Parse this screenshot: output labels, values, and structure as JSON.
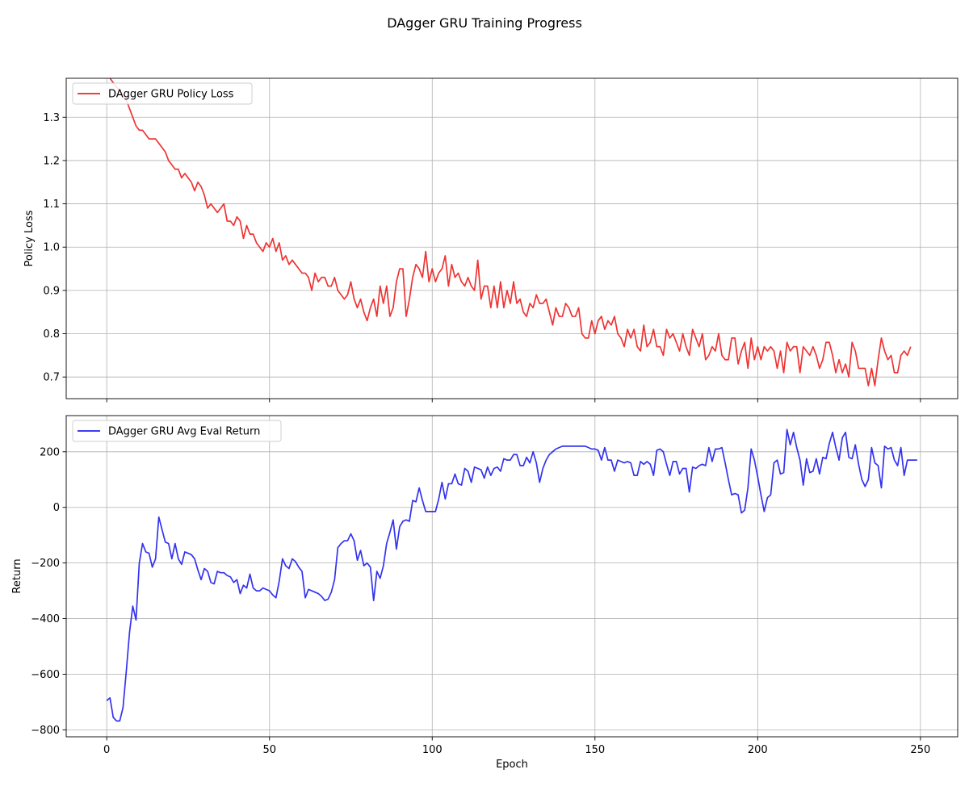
{
  "figure_title": "DAgger GRU Training Progress",
  "chart_data": [
    {
      "type": "line",
      "title": "",
      "xlabel": "",
      "ylabel": "Policy Loss",
      "xlim": [
        -12.45,
        261.45
      ],
      "ylim": [
        0.65,
        1.39
      ],
      "xticks": [
        0,
        50,
        100,
        150,
        200,
        250
      ],
      "xtick_labels": [
        "",
        "",
        "",
        "",
        "",
        ""
      ],
      "yticks": [
        0.7,
        0.8,
        0.9,
        1.0,
        1.1,
        1.2,
        1.3
      ],
      "ytick_labels": [
        "0.7",
        "0.8",
        "0.9",
        "1.0",
        "1.1",
        "1.2",
        "1.3"
      ],
      "grid": true,
      "legend_position": "upper-left",
      "series": [
        {
          "name": "DAgger GRU Policy Loss",
          "color": "#ee2222",
          "x_start": 0,
          "x_step": 1,
          "values": [
            1.4,
            1.39,
            1.38,
            1.37,
            1.36,
            1.35,
            1.34,
            1.32,
            1.3,
            1.28,
            1.27,
            1.27,
            1.26,
            1.25,
            1.25,
            1.25,
            1.24,
            1.23,
            1.22,
            1.2,
            1.19,
            1.18,
            1.18,
            1.16,
            1.17,
            1.16,
            1.15,
            1.13,
            1.15,
            1.14,
            1.12,
            1.09,
            1.1,
            1.09,
            1.08,
            1.09,
            1.1,
            1.06,
            1.06,
            1.05,
            1.07,
            1.06,
            1.02,
            1.05,
            1.03,
            1.03,
            1.01,
            1.0,
            0.99,
            1.01,
            1.0,
            1.02,
            0.99,
            1.01,
            0.97,
            0.98,
            0.96,
            0.97,
            0.96,
            0.95,
            0.94,
            0.94,
            0.93,
            0.9,
            0.94,
            0.92,
            0.93,
            0.93,
            0.91,
            0.91,
            0.93,
            0.9,
            0.89,
            0.88,
            0.89,
            0.92,
            0.88,
            0.86,
            0.88,
            0.85,
            0.83,
            0.86,
            0.88,
            0.84,
            0.91,
            0.87,
            0.91,
            0.84,
            0.86,
            0.92,
            0.95,
            0.95,
            0.84,
            0.88,
            0.93,
            0.96,
            0.95,
            0.93,
            0.99,
            0.92,
            0.95,
            0.92,
            0.94,
            0.95,
            0.98,
            0.91,
            0.96,
            0.93,
            0.94,
            0.92,
            0.91,
            0.93,
            0.91,
            0.9,
            0.97,
            0.88,
            0.91,
            0.91,
            0.86,
            0.91,
            0.86,
            0.92,
            0.86,
            0.9,
            0.87,
            0.92,
            0.87,
            0.88,
            0.85,
            0.84,
            0.87,
            0.86,
            0.89,
            0.87,
            0.87,
            0.88,
            0.85,
            0.82,
            0.86,
            0.84,
            0.84,
            0.87,
            0.86,
            0.84,
            0.84,
            0.86,
            0.8,
            0.79,
            0.79,
            0.83,
            0.8,
            0.83,
            0.84,
            0.81,
            0.83,
            0.82,
            0.84,
            0.8,
            0.79,
            0.77,
            0.81,
            0.79,
            0.81,
            0.77,
            0.76,
            0.82,
            0.77,
            0.78,
            0.81,
            0.77,
            0.77,
            0.75,
            0.81,
            0.79,
            0.8,
            0.78,
            0.76,
            0.8,
            0.77,
            0.75,
            0.81,
            0.79,
            0.77,
            0.8,
            0.74,
            0.75,
            0.77,
            0.76,
            0.8,
            0.75,
            0.74,
            0.74,
            0.79,
            0.79,
            0.73,
            0.76,
            0.78,
            0.72,
            0.79,
            0.74,
            0.77,
            0.74,
            0.77,
            0.76,
            0.77,
            0.76,
            0.72,
            0.76,
            0.71,
            0.78,
            0.76,
            0.77,
            0.77,
            0.71,
            0.77,
            0.76,
            0.75,
            0.77,
            0.75,
            0.72,
            0.74,
            0.78,
            0.78,
            0.75,
            0.71,
            0.74,
            0.71,
            0.73,
            0.7,
            0.78,
            0.76,
            0.72,
            0.72,
            0.72,
            0.68,
            0.72,
            0.68,
            0.74,
            0.79,
            0.76,
            0.74,
            0.75,
            0.71,
            0.71,
            0.75,
            0.76,
            0.75,
            0.77
          ]
        }
      ]
    },
    {
      "type": "line",
      "title": "",
      "xlabel": "Epoch",
      "ylabel": "Return",
      "xlim": [
        -12.45,
        261.45
      ],
      "ylim": [
        -825,
        330
      ],
      "xticks": [
        0,
        50,
        100,
        150,
        200,
        250
      ],
      "xtick_labels": [
        "0",
        "50",
        "100",
        "150",
        "200",
        "250"
      ],
      "yticks": [
        -800,
        -600,
        -400,
        -200,
        0,
        200
      ],
      "ytick_labels": [
        "−800",
        "−600",
        "−400",
        "−200",
        "0",
        "200"
      ],
      "grid": true,
      "legend_position": "upper-left",
      "series": [
        {
          "name": "DAgger GRU Avg Eval Return",
          "color": "#2222ee",
          "x_start": 0,
          "x_step": 1,
          "values": [
            -695,
            -685,
            -755,
            -768,
            -768,
            -720,
            -590,
            -450,
            -355,
            -405,
            -200,
            -130,
            -160,
            -165,
            -215,
            -185,
            -35,
            -80,
            -125,
            -130,
            -185,
            -130,
            -185,
            -205,
            -160,
            -165,
            -170,
            -185,
            -225,
            -260,
            -220,
            -230,
            -270,
            -275,
            -230,
            -235,
            -235,
            -245,
            -250,
            -270,
            -260,
            -310,
            -280,
            -290,
            -240,
            -290,
            -300,
            -300,
            -290,
            -295,
            -300,
            -315,
            -325,
            -265,
            -185,
            -210,
            -220,
            -185,
            -195,
            -215,
            -230,
            -325,
            -295,
            -300,
            -305,
            -310,
            -320,
            -335,
            -330,
            -305,
            -260,
            -145,
            -130,
            -120,
            -120,
            -95,
            -120,
            -190,
            -155,
            -210,
            -200,
            -215,
            -335,
            -230,
            -255,
            -210,
            -130,
            -90,
            -45,
            -150,
            -70,
            -50,
            -45,
            -50,
            25,
            20,
            70,
            25,
            -15,
            -15,
            -15,
            -15,
            30,
            90,
            30,
            85,
            85,
            120,
            85,
            80,
            140,
            130,
            90,
            145,
            140,
            135,
            105,
            145,
            115,
            140,
            145,
            130,
            175,
            170,
            170,
            190,
            190,
            150,
            150,
            180,
            160,
            200,
            160,
            90,
            140,
            170,
            190,
            200,
            210,
            215,
            220,
            220,
            220,
            220,
            220,
            220,
            220,
            220,
            215,
            210,
            210,
            205,
            170,
            215,
            170,
            170,
            130,
            170,
            165,
            160,
            165,
            160,
            115,
            115,
            165,
            155,
            165,
            155,
            115,
            205,
            210,
            200,
            155,
            115,
            165,
            165,
            120,
            140,
            140,
            55,
            145,
            140,
            150,
            155,
            150,
            215,
            165,
            210,
            210,
            215,
            160,
            100,
            45,
            50,
            45,
            -20,
            -10,
            70,
            210,
            170,
            110,
            45,
            -15,
            35,
            45,
            160,
            170,
            120,
            125,
            280,
            225,
            270,
            215,
            170,
            80,
            175,
            125,
            130,
            175,
            120,
            180,
            175,
            230,
            270,
            215,
            170,
            250,
            270,
            180,
            175,
            225,
            155,
            100,
            75,
            100,
            215,
            160,
            150,
            70,
            220,
            210,
            215,
            170,
            150,
            215,
            115,
            170,
            170,
            170,
            170
          ]
        }
      ]
    }
  ]
}
